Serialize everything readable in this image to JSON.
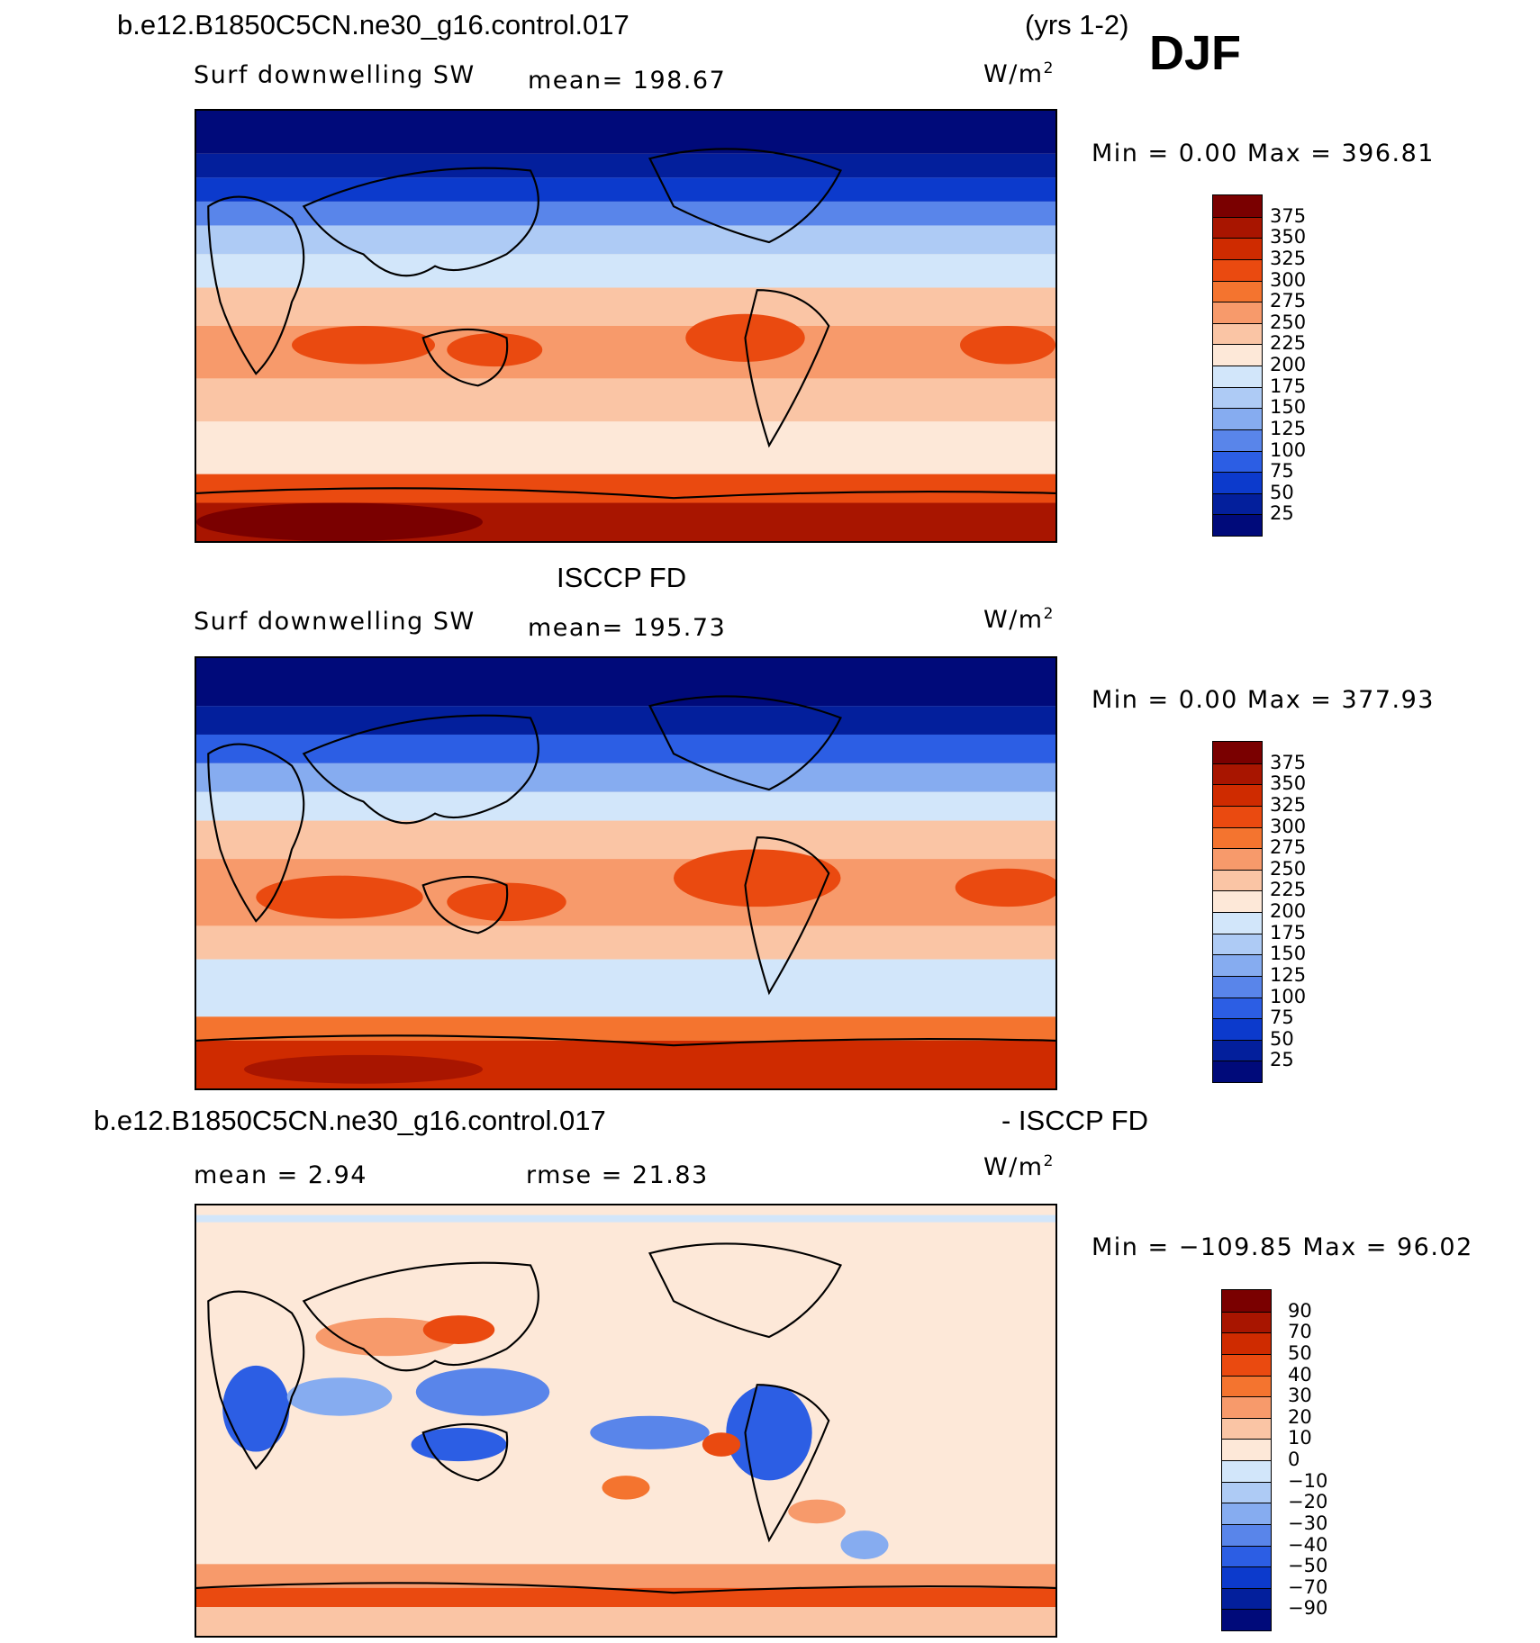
{
  "header": {
    "case_title": "b.e12.B1850C5CN.ne30_g16.control.017",
    "years": "(yrs 1-2)",
    "season": "DJF"
  },
  "panels": [
    {
      "variable": "Surf downwelling SW",
      "stat": "mean=  198.67",
      "units": "W/m",
      "units_sup": "2",
      "minmax": "Min =     0.00  Max  =  396.81",
      "colorbar_ticks": [
        "375",
        "350",
        "325",
        "300",
        "275",
        "250",
        "225",
        "200",
        "175",
        "150",
        "125",
        "100",
        "75",
        "50",
        "25"
      ]
    },
    {
      "dataset_title": "ISCCP FD",
      "variable": "Surf downwelling SW",
      "stat": "mean=  195.73",
      "units": "W/m",
      "units_sup": "2",
      "minmax": "Min =     0.00  Max  =  377.93",
      "colorbar_ticks": [
        "375",
        "350",
        "325",
        "300",
        "275",
        "250",
        "225",
        "200",
        "175",
        "150",
        "125",
        "100",
        "75",
        "50",
        "25"
      ]
    },
    {
      "diff_title_left": "b.e12.B1850C5CN.ne30_g16.control.017",
      "diff_title_right": "- ISCCP FD",
      "stat_mean": "mean  =     2.94",
      "stat_rmse": "rmse  =    21.83",
      "units": "W/m",
      "units_sup": "2",
      "minmax": "Min  = −109.85  Max  =    96.02",
      "colorbar_ticks": [
        "90",
        "70",
        "50",
        "40",
        "30",
        "20",
        "10",
        "0",
        "−10",
        "−20",
        "−30",
        "−40",
        "−50",
        "−70",
        "−90"
      ]
    }
  ],
  "colors": {
    "scale": [
      "#7a0000",
      "#a81500",
      "#cf2b00",
      "#ea4a10",
      "#f4742f",
      "#f79a6b",
      "#fac5a5",
      "#fde8d8",
      "#d2e6fa",
      "#aecbf5",
      "#86acf0",
      "#5985ea",
      "#2c5ee4",
      "#0c3acc",
      "#031f9c",
      "#000a7a"
    ],
    "ocean_high": "#00078a",
    "coast": "#000000"
  }
}
